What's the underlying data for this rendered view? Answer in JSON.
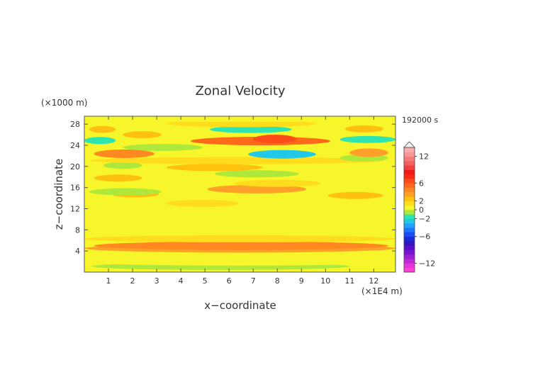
{
  "chart_data": {
    "type": "heatmap",
    "title": "Zonal Velocity",
    "xlabel": "x−coordinate",
    "ylabel": "z−coordinate",
    "x_unit": "(×1E4 m)",
    "y_unit": "(×1000 m)",
    "time_label": "192000 s",
    "xlim": [
      0,
      12.9
    ],
    "ylim": [
      0,
      29.5
    ],
    "x_ticks": [
      "1",
      "2",
      "3",
      "4",
      "5",
      "6",
      "7",
      "8",
      "9",
      "10",
      "11",
      "12"
    ],
    "y_ticks": [
      "4",
      "8",
      "12",
      "16",
      "20",
      "24",
      "28"
    ],
    "colorbar": {
      "levels": [
        -14,
        -13,
        -12,
        -11,
        -10,
        -9,
        -8,
        -7,
        -6,
        -5,
        -4,
        -3,
        -2,
        -1,
        0,
        1,
        2,
        3,
        4,
        5,
        6,
        7,
        8,
        9,
        10,
        11,
        12,
        13,
        14
      ],
      "colors": [
        "#ff3fd8",
        "#e636d8",
        "#c02ad8",
        "#9b1fd6",
        "#7a12d0",
        "#5a0cc8",
        "#3414c0",
        "#1b2ad8",
        "#1a4cf0",
        "#1e74ff",
        "#22a0ff",
        "#21c8e8",
        "#2ee4b0",
        "#aee83a",
        "#f6f62a",
        "#ffdc1c",
        "#ffc010",
        "#ffa028",
        "#ff8820",
        "#ff6a1a",
        "#ff4a1a",
        "#ff2a14",
        "#f01a1a",
        "#f04040",
        "#f46060",
        "#f67c7c",
        "#f89696",
        "#faacac"
      ],
      "tick_labels": [
        "12",
        "6",
        "2",
        "0",
        "−2",
        "−6",
        "−12"
      ]
    },
    "bands": [
      {
        "y": 1.1,
        "x0": 0.3,
        "x1": 11.0,
        "v": -1
      },
      {
        "y": 1.9,
        "x0": 0.0,
        "x1": 12.9,
        "v": 0
      },
      {
        "y": 4.5,
        "x0": 0.0,
        "x1": 12.9,
        "v": 3
      },
      {
        "y": 5.0,
        "x0": 0.4,
        "x1": 12.6,
        "v": 4
      },
      {
        "y": 6.3,
        "x0": 0.0,
        "x1": 12.9,
        "v": 1
      },
      {
        "y": 10.0,
        "x0": 0.0,
        "x1": 12.9,
        "v": 0
      },
      {
        "y": 13.0,
        "x0": 3.4,
        "x1": 6.4,
        "v": 1
      },
      {
        "y": 14.8,
        "x0": 1.1,
        "x1": 3.1,
        "v": 2
      },
      {
        "y": 14.5,
        "x0": 10.1,
        "x1": 12.4,
        "v": 2
      },
      {
        "y": 15.7,
        "x0": 5.1,
        "x1": 9.2,
        "v": 3
      },
      {
        "y": 15.2,
        "x0": 0.2,
        "x1": 3.2,
        "v": -1
      },
      {
        "y": 16.8,
        "x0": 6.2,
        "x1": 9.8,
        "v": 1
      },
      {
        "y": 17.8,
        "x0": 0.4,
        "x1": 2.4,
        "v": 2
      },
      {
        "y": 18.6,
        "x0": 5.4,
        "x1": 8.9,
        "v": -1
      },
      {
        "y": 19.8,
        "x0": 3.4,
        "x1": 7.4,
        "v": 2
      },
      {
        "y": 20.2,
        "x0": 0.8,
        "x1": 2.4,
        "v": -1
      },
      {
        "y": 21.1,
        "x0": 0.2,
        "x1": 12.4,
        "v": 1
      },
      {
        "y": 21.6,
        "x0": 10.6,
        "x1": 12.6,
        "v": -1
      },
      {
        "y": 22.4,
        "x0": 0.4,
        "x1": 2.9,
        "v": 4
      },
      {
        "y": 22.3,
        "x0": 6.8,
        "x1": 9.6,
        "v": -3
      },
      {
        "y": 22.6,
        "x0": 11.0,
        "x1": 12.6,
        "v": 3
      },
      {
        "y": 23.6,
        "x0": 1.6,
        "x1": 4.9,
        "v": -1
      },
      {
        "y": 24.8,
        "x0": 4.4,
        "x1": 10.2,
        "v": 5
      },
      {
        "y": 25.2,
        "x0": 7.0,
        "x1": 8.8,
        "v": 6
      },
      {
        "y": 24.9,
        "x0": 0.0,
        "x1": 1.3,
        "v": -2
      },
      {
        "y": 25.1,
        "x0": 10.6,
        "x1": 12.9,
        "v": -2
      },
      {
        "y": 26.0,
        "x0": 1.6,
        "x1": 3.2,
        "v": 2
      },
      {
        "y": 27.0,
        "x0": 5.2,
        "x1": 8.6,
        "v": -2
      },
      {
        "y": 27.0,
        "x0": 0.2,
        "x1": 1.3,
        "v": 2
      },
      {
        "y": 27.1,
        "x0": 10.8,
        "x1": 12.4,
        "v": 2
      },
      {
        "y": 28.1,
        "x0": 3.4,
        "x1": 9.6,
        "v": 1
      },
      {
        "y": 29.1,
        "x0": 0.0,
        "x1": 12.9,
        "v": 0
      }
    ]
  }
}
